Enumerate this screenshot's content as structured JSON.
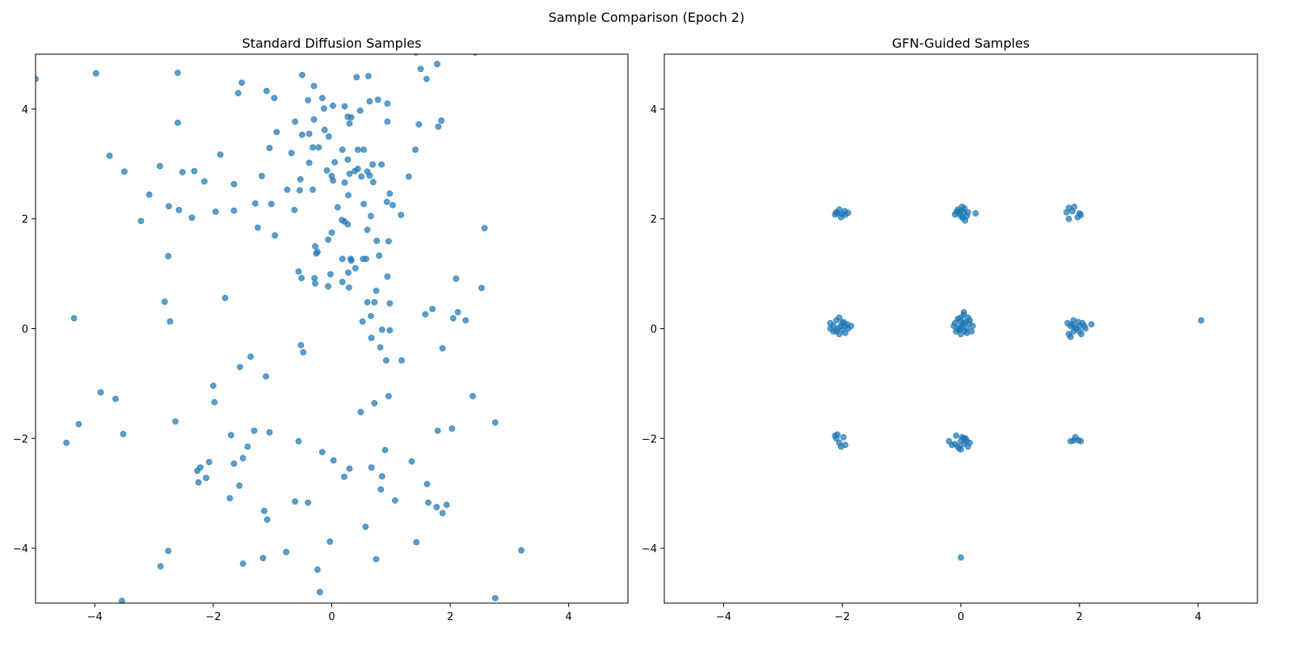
{
  "figure": {
    "suptitle": "Sample Comparison (Epoch 2)"
  },
  "chart_data": [
    {
      "type": "scatter",
      "title": "Standard Diffusion Samples",
      "xlabel": "",
      "ylabel": "",
      "xlim": [
        -5,
        5
      ],
      "ylim": [
        -5,
        5
      ],
      "xticks": [
        -4,
        -2,
        0,
        2,
        4
      ],
      "yticks": [
        -4,
        -2,
        0,
        2,
        4
      ],
      "color": "#1f77b4",
      "grid": false,
      "points": [
        [
          -5.0,
          4.55
        ],
        [
          -3.98,
          4.65
        ],
        [
          -2.6,
          4.66
        ],
        [
          -1.62,
          5.05
        ],
        [
          1.42,
          5.03
        ],
        [
          2.42,
          5.03
        ],
        [
          -1.52,
          4.48
        ],
        [
          -1.58,
          4.29
        ],
        [
          -1.1,
          4.33
        ],
        [
          -0.97,
          4.2
        ],
        [
          -0.5,
          4.62
        ],
        [
          -0.3,
          4.42
        ],
        [
          -0.4,
          4.16
        ],
        [
          -0.16,
          4.2
        ],
        [
          0.02,
          4.06
        ],
        [
          -0.13,
          4.01
        ],
        [
          0.22,
          4.05
        ],
        [
          0.42,
          4.58
        ],
        [
          0.62,
          4.6
        ],
        [
          0.64,
          4.14
        ],
        [
          0.78,
          4.17
        ],
        [
          0.94,
          4.1
        ],
        [
          1.6,
          4.55
        ],
        [
          1.78,
          4.82
        ],
        [
          1.5,
          4.73
        ],
        [
          -2.6,
          3.75
        ],
        [
          -0.93,
          3.58
        ],
        [
          -0.62,
          3.77
        ],
        [
          -0.5,
          3.53
        ],
        [
          -0.38,
          3.55
        ],
        [
          -0.3,
          3.81
        ],
        [
          -0.12,
          3.62
        ],
        [
          -0.05,
          3.5
        ],
        [
          0.27,
          3.86
        ],
        [
          0.33,
          3.85
        ],
        [
          0.3,
          3.74
        ],
        [
          0.48,
          3.97
        ],
        [
          0.94,
          3.77
        ],
        [
          1.47,
          3.72
        ],
        [
          1.8,
          3.68
        ],
        [
          1.85,
          3.79
        ],
        [
          -3.75,
          3.15
        ],
        [
          -1.88,
          3.17
        ],
        [
          -2.9,
          2.96
        ],
        [
          -2.52,
          2.85
        ],
        [
          -3.5,
          2.86
        ],
        [
          -3.08,
          2.44
        ],
        [
          -1.05,
          3.29
        ],
        [
          -0.68,
          3.2
        ],
        [
          -0.32,
          3.3
        ],
        [
          -0.22,
          3.3
        ],
        [
          -0.38,
          3.02
        ],
        [
          0.05,
          3.03
        ],
        [
          0.18,
          3.26
        ],
        [
          0.44,
          3.26
        ],
        [
          0.54,
          3.26
        ],
        [
          0.27,
          3.08
        ],
        [
          0.84,
          2.99
        ],
        [
          0.69,
          2.99
        ],
        [
          1.41,
          3.26
        ],
        [
          1.3,
          2.77
        ],
        [
          -2.32,
          2.87
        ],
        [
          -2.15,
          2.68
        ],
        [
          -1.65,
          2.63
        ],
        [
          -1.18,
          2.78
        ],
        [
          -0.53,
          2.72
        ],
        [
          -0.08,
          2.88
        ],
        [
          0.0,
          2.78
        ],
        [
          0.02,
          2.7
        ],
        [
          0.3,
          2.82
        ],
        [
          0.39,
          2.87
        ],
        [
          0.44,
          2.91
        ],
        [
          0.5,
          2.77
        ],
        [
          0.6,
          2.86
        ],
        [
          0.64,
          2.79
        ],
        [
          0.7,
          2.67
        ],
        [
          0.22,
          2.66
        ],
        [
          -0.75,
          2.53
        ],
        [
          -0.54,
          2.52
        ],
        [
          -0.32,
          2.53
        ],
        [
          0.28,
          2.43
        ],
        [
          0.98,
          2.46
        ],
        [
          0.93,
          2.31
        ],
        [
          1.03,
          2.25
        ],
        [
          -2.75,
          2.23
        ],
        [
          -2.58,
          2.16
        ],
        [
          -3.22,
          1.96
        ],
        [
          -2.36,
          2.02
        ],
        [
          -1.96,
          2.13
        ],
        [
          -1.65,
          2.15
        ],
        [
          -1.29,
          2.28
        ],
        [
          -1.02,
          2.27
        ],
        [
          -0.63,
          2.16
        ],
        [
          0.1,
          2.21
        ],
        [
          0.54,
          2.27
        ],
        [
          0.66,
          2.05
        ],
        [
          1.17,
          2.07
        ],
        [
          0.17,
          1.98
        ],
        [
          0.22,
          1.95
        ],
        [
          0.27,
          1.9
        ],
        [
          -1.25,
          1.84
        ],
        [
          -0.96,
          1.7
        ],
        [
          0.0,
          1.75
        ],
        [
          0.6,
          1.8
        ],
        [
          2.58,
          1.83
        ],
        [
          -0.28,
          1.5
        ],
        [
          -0.06,
          1.62
        ],
        [
          0.76,
          1.6
        ],
        [
          0.96,
          1.59
        ],
        [
          -2.76,
          1.32
        ],
        [
          -0.24,
          1.4
        ],
        [
          -0.26,
          1.37
        ],
        [
          0.18,
          1.27
        ],
        [
          0.32,
          1.27
        ],
        [
          0.33,
          1.24
        ],
        [
          0.53,
          1.27
        ],
        [
          0.58,
          1.27
        ],
        [
          0.8,
          1.33
        ],
        [
          -0.56,
          1.04
        ],
        [
          -0.51,
          0.92
        ],
        [
          -0.29,
          0.92
        ],
        [
          -0.28,
          0.82
        ],
        [
          -0.02,
          0.99
        ],
        [
          -0.06,
          0.77
        ],
        [
          0.18,
          0.85
        ],
        [
          0.28,
          1.02
        ],
        [
          0.4,
          1.1
        ],
        [
          0.29,
          0.75
        ],
        [
          0.94,
          0.95
        ],
        [
          2.1,
          0.91
        ],
        [
          2.53,
          0.74
        ],
        [
          -2.82,
          0.49
        ],
        [
          -1.8,
          0.56
        ],
        [
          0.6,
          0.48
        ],
        [
          0.72,
          0.48
        ],
        [
          0.98,
          0.46
        ],
        [
          0.75,
          0.69
        ],
        [
          1.58,
          0.26
        ],
        [
          1.7,
          0.36
        ],
        [
          2.13,
          0.3
        ],
        [
          2.05,
          0.19
        ],
        [
          2.26,
          0.15
        ],
        [
          -4.35,
          0.19
        ],
        [
          -2.73,
          0.13
        ],
        [
          0.52,
          0.13
        ],
        [
          0.66,
          0.23
        ],
        [
          0.85,
          -0.02
        ],
        [
          0.98,
          -0.03
        ],
        [
          0.67,
          -0.17
        ],
        [
          -0.52,
          -0.3
        ],
        [
          -0.48,
          -0.43
        ],
        [
          0.82,
          -0.34
        ],
        [
          1.87,
          -0.36
        ],
        [
          -1.37,
          -0.51
        ],
        [
          0.92,
          -0.58
        ],
        [
          1.18,
          -0.58
        ],
        [
          -1.55,
          -0.7
        ],
        [
          -1.11,
          -0.87
        ],
        [
          -2.0,
          -1.04
        ],
        [
          -3.9,
          -1.16
        ],
        [
          -3.65,
          -1.28
        ],
        [
          -1.98,
          -1.34
        ],
        [
          0.96,
          -1.23
        ],
        [
          0.72,
          -1.36
        ],
        [
          2.38,
          -1.23
        ],
        [
          0.49,
          -1.52
        ],
        [
          -4.27,
          -1.74
        ],
        [
          -2.64,
          -1.69
        ],
        [
          2.76,
          -1.71
        ],
        [
          2.03,
          -1.82
        ],
        [
          1.79,
          -1.86
        ],
        [
          -3.52,
          -1.92
        ],
        [
          -1.31,
          -1.86
        ],
        [
          -1.05,
          -1.89
        ],
        [
          -1.7,
          -1.94
        ],
        [
          -4.48,
          -2.08
        ],
        [
          -1.42,
          -2.15
        ],
        [
          -0.56,
          -2.05
        ],
        [
          0.9,
          -2.21
        ],
        [
          -0.16,
          -2.25
        ],
        [
          -2.07,
          -2.43
        ],
        [
          -1.65,
          -2.46
        ],
        [
          -1.5,
          -2.36
        ],
        [
          0.03,
          -2.4
        ],
        [
          -2.22,
          -2.53
        ],
        [
          -2.27,
          -2.59
        ],
        [
          0.3,
          -2.55
        ],
        [
          0.67,
          -2.53
        ],
        [
          1.35,
          -2.42
        ],
        [
          -2.25,
          -2.8
        ],
        [
          -2.12,
          -2.72
        ],
        [
          0.21,
          -2.7
        ],
        [
          0.85,
          -2.69
        ],
        [
          1.61,
          -2.83
        ],
        [
          -1.56,
          -2.86
        ],
        [
          0.83,
          -2.93
        ],
        [
          -1.72,
          -3.09
        ],
        [
          -1.14,
          -3.32
        ],
        [
          -0.62,
          -3.15
        ],
        [
          -0.4,
          -3.17
        ],
        [
          1.07,
          -3.13
        ],
        [
          1.63,
          -3.17
        ],
        [
          1.77,
          -3.25
        ],
        [
          1.94,
          -3.21
        ],
        [
          1.87,
          -3.36
        ],
        [
          -1.09,
          -3.48
        ],
        [
          0.57,
          -3.61
        ],
        [
          -0.03,
          -3.88
        ],
        [
          1.43,
          -3.89
        ],
        [
          3.2,
          -4.04
        ],
        [
          -2.76,
          -4.05
        ],
        [
          -0.77,
          -4.07
        ],
        [
          -1.16,
          -4.18
        ],
        [
          0.75,
          -4.2
        ],
        [
          -1.5,
          -4.28
        ],
        [
          -2.89,
          -4.33
        ],
        [
          -0.24,
          -4.39
        ],
        [
          -0.2,
          -4.8
        ],
        [
          -3.54,
          -4.96
        ],
        [
          2.76,
          -4.91
        ]
      ]
    },
    {
      "type": "scatter",
      "title": "GFN-Guided Samples",
      "xlabel": "",
      "ylabel": "",
      "xlim": [
        -5,
        5
      ],
      "ylim": [
        -5,
        5
      ],
      "xticks": [
        -4,
        -2,
        0,
        2,
        4
      ],
      "yticks": [
        -4,
        -2,
        0,
        2,
        4
      ],
      "color": "#1f77b4",
      "grid": false,
      "points": [
        [
          -2.12,
          2.08
        ],
        [
          -2.05,
          2.17
        ],
        [
          -1.96,
          2.14
        ],
        [
          -2.02,
          2.03
        ],
        [
          -2.08,
          2.1
        ],
        [
          -1.9,
          2.11
        ],
        [
          -2.0,
          2.09
        ],
        [
          -2.1,
          2.12
        ],
        [
          -1.95,
          2.07
        ],
        [
          0.0,
          2.05
        ],
        [
          0.05,
          2.12
        ],
        [
          -0.05,
          2.17
        ],
        [
          0.02,
          2.22
        ],
        [
          0.12,
          2.12
        ],
        [
          0.25,
          2.1
        ],
        [
          -0.1,
          2.08
        ],
        [
          0.07,
          1.97
        ],
        [
          0.03,
          2.02
        ],
        [
          -0.03,
          2.1
        ],
        [
          0.1,
          2.05
        ],
        [
          0.0,
          2.15
        ],
        [
          0.06,
          2.19
        ],
        [
          -0.07,
          2.13
        ],
        [
          1.78,
          2.12
        ],
        [
          1.82,
          2.2
        ],
        [
          1.91,
          2.22
        ],
        [
          1.82,
          2.0
        ],
        [
          1.97,
          2.03
        ],
        [
          2.0,
          2.1
        ],
        [
          2.02,
          2.07
        ],
        [
          1.88,
          2.14
        ],
        [
          -2.2,
          0.1
        ],
        [
          -2.15,
          0.05
        ],
        [
          -2.1,
          0.15
        ],
        [
          -2.05,
          0.2
        ],
        [
          -2.0,
          0.1
        ],
        [
          -1.95,
          0.05
        ],
        [
          -1.9,
          0.0
        ],
        [
          -2.1,
          -0.05
        ],
        [
          -2.05,
          -0.1
        ],
        [
          -1.95,
          -0.08
        ],
        [
          -1.85,
          0.05
        ],
        [
          -2.2,
          0.0
        ],
        [
          -2.0,
          -0.02
        ],
        [
          -2.08,
          0.0
        ],
        [
          -1.98,
          0.12
        ],
        [
          -2.15,
          -0.05
        ],
        [
          -1.92,
          0.08
        ],
        [
          -2.03,
          0.04
        ],
        [
          -0.05,
          0.0
        ],
        [
          0.0,
          0.05
        ],
        [
          0.05,
          0.1
        ],
        [
          0.1,
          0.0
        ],
        [
          -0.1,
          0.1
        ],
        [
          0.0,
          0.2
        ],
        [
          0.05,
          0.3
        ],
        [
          0.15,
          0.15
        ],
        [
          -0.08,
          -0.05
        ],
        [
          0.1,
          -0.08
        ],
        [
          0.0,
          -0.1
        ],
        [
          -0.12,
          0.05
        ],
        [
          0.2,
          0.05
        ],
        [
          0.05,
          0.25
        ],
        [
          -0.02,
          0.15
        ],
        [
          0.12,
          0.2
        ],
        [
          0.08,
          0.12
        ],
        [
          -0.05,
          0.18
        ],
        [
          0.18,
          -0.05
        ],
        [
          0.03,
          0.08
        ],
        [
          -0.03,
          -0.02
        ],
        [
          0.07,
          -0.04
        ],
        [
          0.14,
          0.09
        ],
        [
          0.0,
          0.0
        ],
        [
          1.8,
          0.1
        ],
        [
          1.85,
          0.05
        ],
        [
          1.9,
          -0.05
        ],
        [
          1.95,
          0.0
        ],
        [
          2.0,
          0.05
        ],
        [
          2.05,
          0.1
        ],
        [
          1.9,
          0.15
        ],
        [
          1.82,
          -0.1
        ],
        [
          1.85,
          -0.15
        ],
        [
          2.0,
          -0.05
        ],
        [
          2.1,
          0.0
        ],
        [
          2.2,
          0.08
        ],
        [
          1.98,
          0.12
        ],
        [
          1.92,
          0.02
        ],
        [
          2.03,
          -0.1
        ],
        [
          1.88,
          0.08
        ],
        [
          2.08,
          0.05
        ],
        [
          4.05,
          0.15
        ],
        [
          -2.12,
          -1.95
        ],
        [
          -2.08,
          -1.93
        ],
        [
          -2.05,
          -2.08
        ],
        [
          -2.02,
          -2.15
        ],
        [
          -1.95,
          -2.12
        ],
        [
          -2.1,
          -2.0
        ],
        [
          -1.98,
          -1.98
        ],
        [
          -0.2,
          -2.05
        ],
        [
          -0.1,
          -2.1
        ],
        [
          -0.05,
          -2.15
        ],
        [
          0.0,
          -2.2
        ],
        [
          0.05,
          -2.1
        ],
        [
          0.1,
          -2.05
        ],
        [
          0.15,
          -2.08
        ],
        [
          -0.08,
          -1.95
        ],
        [
          0.02,
          -1.98
        ],
        [
          0.08,
          -2.0
        ],
        [
          -0.03,
          -2.18
        ],
        [
          0.12,
          -2.15
        ],
        [
          -0.15,
          -2.12
        ],
        [
          0.0,
          -2.05
        ],
        [
          0.05,
          -2.0
        ],
        [
          1.85,
          -2.05
        ],
        [
          1.93,
          -1.98
        ],
        [
          1.98,
          -2.03
        ],
        [
          2.02,
          -2.05
        ],
        [
          1.9,
          -2.04
        ],
        [
          0.0,
          -4.17
        ]
      ]
    }
  ]
}
